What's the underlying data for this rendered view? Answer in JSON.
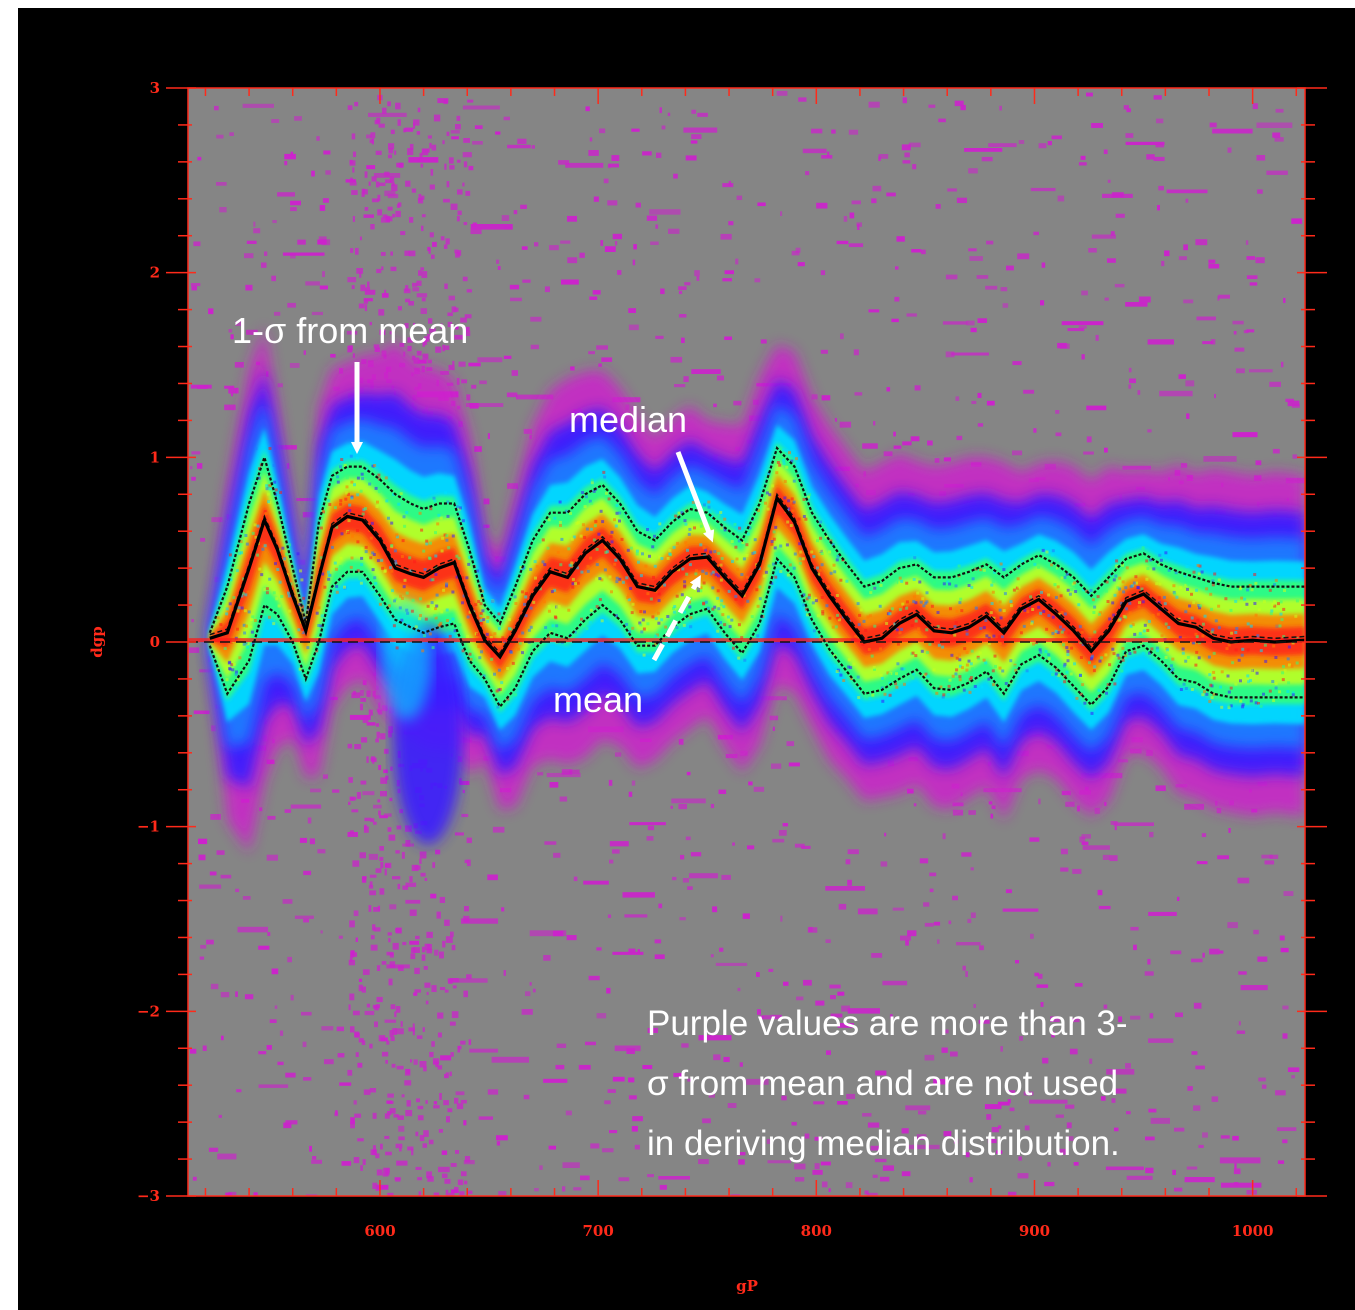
{
  "chart_data": {
    "type": "heatmap",
    "xlabel": "gP",
    "ylabel": "dgp",
    "xlim": [
      512,
      1024
    ],
    "ylim": [
      -3,
      3
    ],
    "x_ticks": [
      600,
      700,
      800,
      900,
      1000
    ],
    "y_ticks": [
      -3,
      -2,
      -1,
      0,
      1,
      2,
      3
    ],
    "annotations": {
      "sigma": "1-σ from mean",
      "median": "median",
      "mean": "mean",
      "purple_note_lines": [
        "Purple values are more than 3-",
        "σ from mean and are not used",
        "in deriving median distribution."
      ]
    },
    "median_curve": {
      "x": [
        522,
        530,
        540,
        547,
        553,
        560,
        566,
        572,
        578,
        585,
        592,
        600,
        607,
        614,
        620,
        627,
        634,
        641,
        648,
        655,
        662,
        670,
        678,
        686,
        694,
        702,
        710,
        718,
        726,
        734,
        742,
        750,
        758,
        766,
        774,
        782,
        790,
        798,
        806,
        814,
        822,
        830,
        838,
        846,
        854,
        862,
        870,
        878,
        886,
        894,
        902,
        910,
        918,
        926,
        934,
        942,
        950,
        958,
        966,
        974,
        982,
        990,
        1000,
        1010,
        1024
      ],
      "y": [
        0.02,
        0.05,
        0.4,
        0.66,
        0.5,
        0.25,
        0.06,
        0.35,
        0.62,
        0.68,
        0.66,
        0.55,
        0.4,
        0.37,
        0.35,
        0.4,
        0.43,
        0.2,
        0.01,
        -0.08,
        0.06,
        0.25,
        0.38,
        0.35,
        0.48,
        0.55,
        0.45,
        0.3,
        0.28,
        0.38,
        0.45,
        0.46,
        0.35,
        0.25,
        0.42,
        0.78,
        0.65,
        0.4,
        0.25,
        0.12,
        0.0,
        0.02,
        0.1,
        0.15,
        0.06,
        0.05,
        0.08,
        0.14,
        0.05,
        0.18,
        0.23,
        0.15,
        0.06,
        -0.05,
        0.06,
        0.22,
        0.26,
        0.18,
        0.1,
        0.08,
        0.02,
        0.0,
        0.01,
        0.0,
        0.01
      ]
    },
    "sigma_band": {
      "upper": [
        0.05,
        0.3,
        0.75,
        1.0,
        0.75,
        0.4,
        0.1,
        0.65,
        0.9,
        0.95,
        0.95,
        0.88,
        0.8,
        0.75,
        0.72,
        0.75,
        0.75,
        0.5,
        0.2,
        0.1,
        0.3,
        0.55,
        0.7,
        0.7,
        0.8,
        0.85,
        0.75,
        0.6,
        0.55,
        0.65,
        0.72,
        0.7,
        0.62,
        0.55,
        0.75,
        1.05,
        0.95,
        0.7,
        0.55,
        0.42,
        0.3,
        0.33,
        0.4,
        0.42,
        0.35,
        0.35,
        0.38,
        0.42,
        0.35,
        0.42,
        0.47,
        0.42,
        0.35,
        0.25,
        0.35,
        0.45,
        0.48,
        0.42,
        0.38,
        0.35,
        0.32,
        0.3,
        0.3,
        0.3,
        0.3
      ],
      "lower": [
        -0.02,
        -0.28,
        -0.1,
        0.2,
        0.15,
        0.0,
        -0.2,
        0.0,
        0.3,
        0.38,
        0.38,
        0.25,
        0.12,
        0.08,
        0.05,
        0.08,
        0.1,
        -0.1,
        -0.2,
        -0.35,
        -0.25,
        -0.05,
        0.05,
        0.02,
        0.12,
        0.2,
        0.12,
        -0.02,
        -0.02,
        0.08,
        0.15,
        0.18,
        0.05,
        -0.06,
        0.1,
        0.45,
        0.35,
        0.12,
        -0.04,
        -0.16,
        -0.28,
        -0.26,
        -0.2,
        -0.15,
        -0.25,
        -0.26,
        -0.22,
        -0.16,
        -0.28,
        -0.12,
        -0.07,
        -0.14,
        -0.24,
        -0.34,
        -0.24,
        -0.05,
        -0.02,
        -0.1,
        -0.2,
        -0.22,
        -0.28,
        -0.3,
        -0.3,
        -0.3,
        -0.3
      ]
    },
    "colors": {
      "background": "#000000",
      "plot_area": "#858585",
      "axis": "#ff2a1a",
      "annotation_text": "#ffffff",
      "outlier": "#cc22cc",
      "density_scale": [
        "#3a1aff",
        "#1f7dff",
        "#00e0ff",
        "#32ff7a",
        "#c8ff1e",
        "#ff7a00",
        "#ff1a1a"
      ]
    },
    "grid": false
  }
}
